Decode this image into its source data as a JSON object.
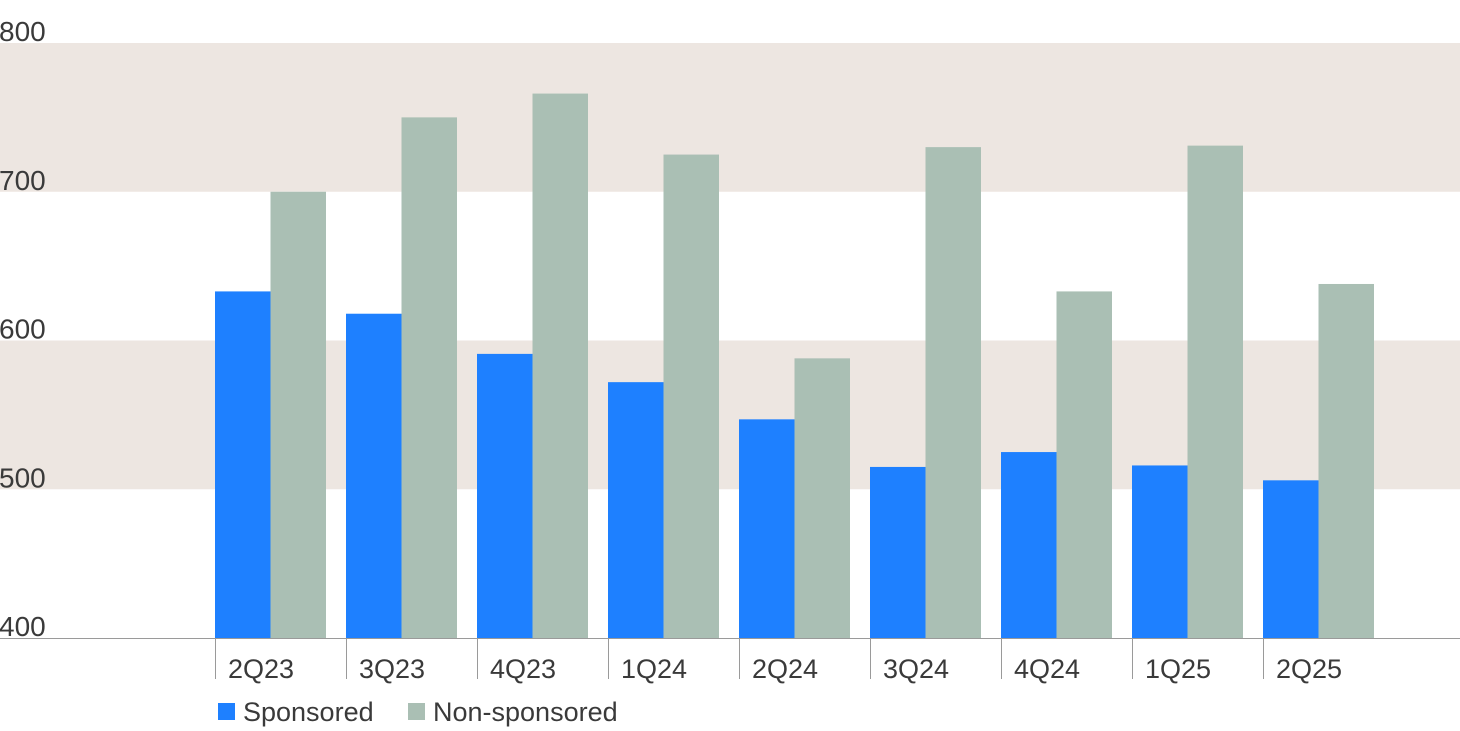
{
  "chart_data": {
    "type": "bar",
    "categories": [
      "2Q23",
      "3Q23",
      "4Q23",
      "1Q24",
      "2Q24",
      "3Q24",
      "4Q24",
      "1Q25",
      "2Q25"
    ],
    "series": [
      {
        "name": "Sponsored",
        "color": "#1e80ff",
        "values": [
          633,
          618,
          591,
          572,
          547,
          515,
          525,
          516,
          506
        ]
      },
      {
        "name": "Non-sponsored",
        "color": "#aabfb4",
        "values": [
          700,
          750,
          766,
          725,
          588,
          730,
          633,
          731,
          638
        ]
      }
    ],
    "title": "",
    "xlabel": "",
    "ylabel": "",
    "ylim": [
      400,
      800
    ],
    "yticks": [
      "400",
      "500",
      "600",
      "700",
      "800"
    ],
    "band_color": "#ede6e1",
    "bands": [
      [
        500,
        600
      ],
      [
        700,
        800
      ]
    ],
    "legend_position": "bottom-left",
    "grid": false
  }
}
